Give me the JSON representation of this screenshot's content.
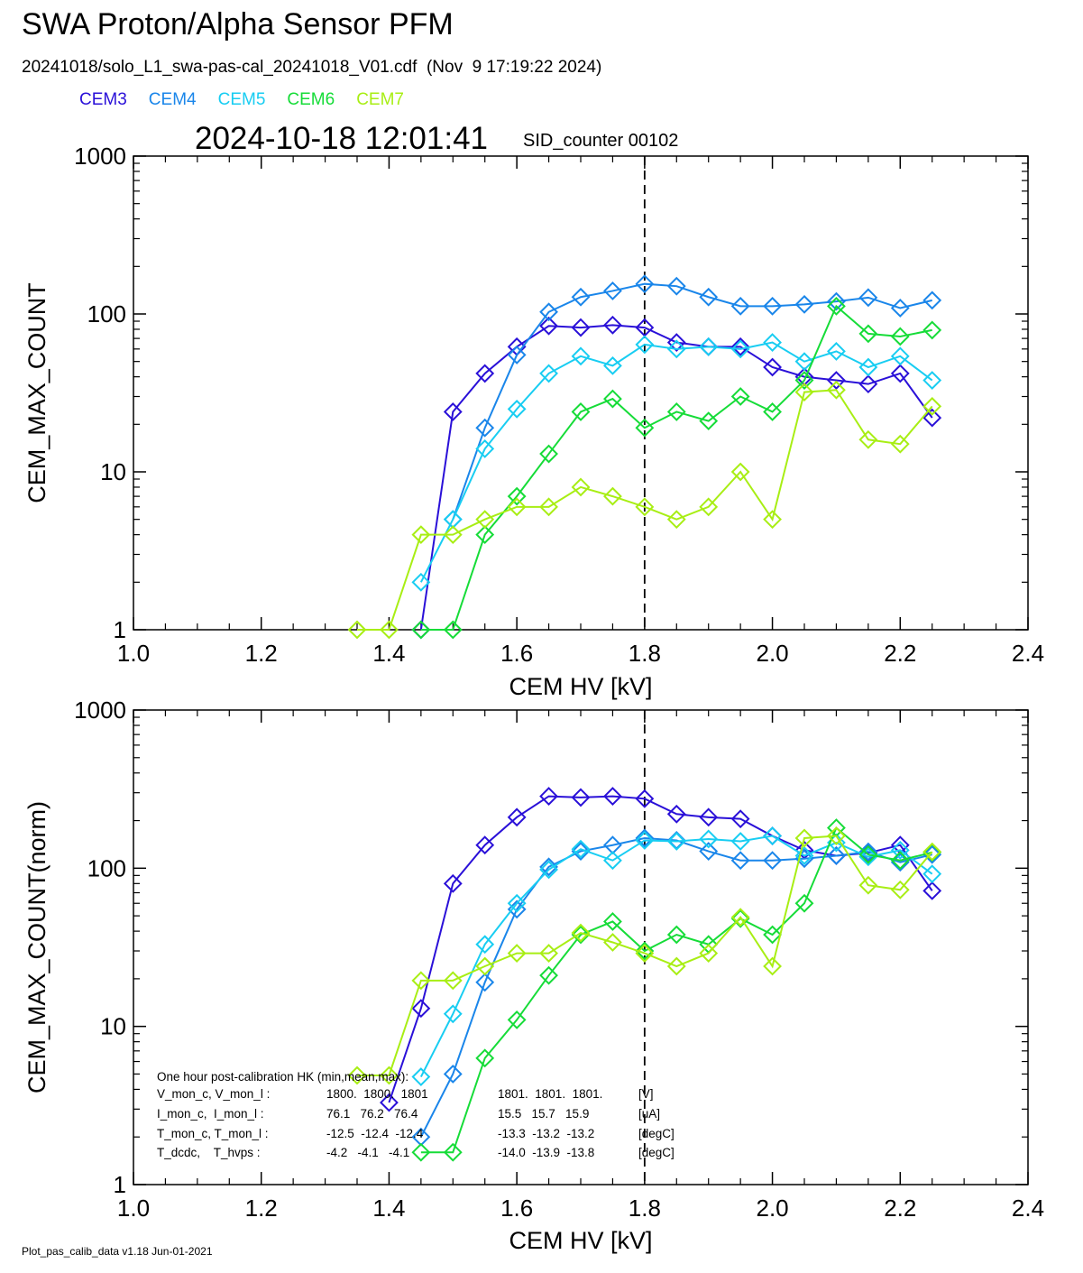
{
  "header": {
    "title": "SWA Proton/Alpha Sensor PFM",
    "file_line": "20241018/solo_L1_swa-pas-cal_20241018_V01.cdf  (Nov  9 17:19:22 2024)",
    "timestamp": "2024-10-18 12:01:41",
    "sid_counter": "SID_counter 00102"
  },
  "legend": [
    {
      "name": "CEM3",
      "color": "#2a10d8"
    },
    {
      "name": "CEM4",
      "color": "#1a86ea"
    },
    {
      "name": "CEM5",
      "color": "#18cdf2"
    },
    {
      "name": "CEM6",
      "color": "#16dc38"
    },
    {
      "name": "CEM7",
      "color": "#a8ee14"
    }
  ],
  "footer": "Plot_pas_calib_data v1.18 Jun-01-2021",
  "hk_block": {
    "title": "One hour post-calibration HK (min,mean,max):",
    "rows": [
      {
        "label": "V_mon_c, V_mon_l :",
        "c": "1800.  1800.  1801",
        "l": "1801.  1801.  1801.",
        "unit": "[V]"
      },
      {
        "label": "I_mon_c,  I_mon_l :",
        "c": "76.1   76.2   76.4",
        "l": "15.5   15.7   15.9",
        "unit": "[uA]"
      },
      {
        "label": "T_mon_c, T_mon_l :",
        "c": "-12.5  -12.4  -12.4",
        "l": "-13.3  -13.2  -13.2",
        "unit": "[degC]"
      },
      {
        "label": "T_dcdc,    T_hvps :",
        "c": "-4.2   -4.1   -4.1",
        "l": "-14.0  -13.9  -13.8",
        "unit": "[degC]"
      }
    ]
  },
  "chart_data": [
    {
      "type": "line",
      "xlabel": "CEM HV [kV]",
      "ylabel": "CEM_MAX_COUNT",
      "xlim": [
        1.0,
        2.4
      ],
      "ylim": [
        1,
        1000
      ],
      "yscale": "log",
      "xticks": [
        "1.0",
        "1.2",
        "1.4",
        "1.6",
        "1.8",
        "2.0",
        "2.2",
        "2.4"
      ],
      "yticks": [
        "1",
        "10",
        "100",
        "1000"
      ],
      "vline_x": 1.8,
      "series": [
        {
          "name": "CEM3",
          "x": [
            1.45,
            1.5,
            1.55,
            1.6,
            1.65,
            1.7,
            1.75,
            1.8,
            1.85,
            1.9,
            1.95,
            2.0,
            2.05,
            2.1,
            2.15,
            2.2,
            2.25
          ],
          "values": [
            1,
            24,
            42,
            62,
            84,
            82,
            85,
            82,
            66,
            62,
            62,
            46,
            40,
            38,
            36,
            42,
            22
          ]
        },
        {
          "name": "CEM4",
          "x": [
            1.5,
            1.55,
            1.6,
            1.65,
            1.7,
            1.75,
            1.8,
            1.85,
            1.9,
            1.95,
            2.0,
            2.05,
            2.1,
            2.15,
            2.2,
            2.25
          ],
          "values": [
            5,
            19,
            55,
            103,
            128,
            140,
            155,
            150,
            128,
            112,
            112,
            115,
            120,
            127,
            109,
            122
          ]
        },
        {
          "name": "CEM5",
          "x": [
            1.45,
            1.5,
            1.55,
            1.6,
            1.65,
            1.7,
            1.75,
            1.8,
            1.85,
            1.9,
            1.95,
            2.0,
            2.05,
            2.1,
            2.15,
            2.2,
            2.25
          ],
          "values": [
            2,
            5,
            14,
            25,
            42,
            54,
            47,
            64,
            60,
            62,
            60,
            66,
            50,
            58,
            46,
            54,
            38
          ]
        },
        {
          "name": "CEM6",
          "x": [
            1.45,
            1.5,
            1.55,
            1.6,
            1.65,
            1.7,
            1.75,
            1.8,
            1.85,
            1.9,
            1.95,
            2.0,
            2.05,
            2.1,
            2.15,
            2.2,
            2.25
          ],
          "values": [
            1,
            1,
            4,
            7,
            13,
            24,
            29,
            19,
            24,
            21,
            30,
            24,
            38,
            112,
            75,
            72,
            79
          ]
        },
        {
          "name": "CEM7",
          "x": [
            1.35,
            1.4,
            1.45,
            1.5,
            1.55,
            1.6,
            1.65,
            1.7,
            1.75,
            1.8,
            1.85,
            1.9,
            1.95,
            2.0,
            2.05,
            2.1,
            2.15,
            2.2,
            2.25
          ],
          "values": [
            1,
            1,
            4,
            4,
            5,
            6,
            6,
            8,
            7,
            6,
            5,
            6,
            10,
            5,
            32,
            33,
            16,
            15,
            26
          ]
        }
      ]
    },
    {
      "type": "line",
      "xlabel": "CEM HV [kV]",
      "ylabel": "CEM_MAX_COUNT(norm)",
      "xlim": [
        1.0,
        2.4
      ],
      "ylim": [
        1,
        1000
      ],
      "yscale": "log",
      "xticks": [
        "1.0",
        "1.2",
        "1.4",
        "1.6",
        "1.8",
        "2.0",
        "2.2",
        "2.4"
      ],
      "yticks": [
        "1",
        "10",
        "100",
        "1000"
      ],
      "vline_x": 1.8,
      "series": [
        {
          "name": "CEM3",
          "x": [
            1.4,
            1.45,
            1.5,
            1.55,
            1.6,
            1.65,
            1.7,
            1.75,
            1.8,
            1.85,
            1.9,
            1.95,
            2.0,
            2.05,
            2.1,
            2.15,
            2.2,
            2.25
          ],
          "values": [
            3.3,
            13,
            80,
            140,
            210,
            285,
            280,
            285,
            275,
            220,
            210,
            205,
            160,
            130,
            120,
            125,
            140,
            72
          ]
        },
        {
          "name": "CEM4",
          "x": [
            1.45,
            1.5,
            1.55,
            1.6,
            1.65,
            1.7,
            1.75,
            1.8,
            1.85,
            1.9,
            1.95,
            2.0,
            2.05,
            2.1,
            2.15,
            2.2,
            2.25
          ],
          "values": [
            2,
            5,
            19,
            55,
            102,
            128,
            140,
            155,
            150,
            128,
            112,
            112,
            115,
            120,
            127,
            109,
            122
          ]
        },
        {
          "name": "CEM5",
          "x": [
            1.45,
            1.5,
            1.55,
            1.6,
            1.65,
            1.7,
            1.75,
            1.8,
            1.85,
            1.9,
            1.95,
            2.0,
            2.05,
            2.1,
            2.15,
            2.2,
            2.25
          ],
          "values": [
            4.8,
            12,
            33,
            60,
            98,
            132,
            112,
            150,
            148,
            153,
            148,
            160,
            120,
            145,
            118,
            130,
            92
          ]
        },
        {
          "name": "CEM6",
          "x": [
            1.45,
            1.5,
            1.55,
            1.6,
            1.65,
            1.7,
            1.75,
            1.8,
            1.85,
            1.9,
            1.95,
            2.0,
            2.05,
            2.1,
            2.15,
            2.2,
            2.25
          ],
          "values": [
            1.6,
            1.6,
            6.3,
            11,
            21,
            38,
            46,
            30,
            38,
            33,
            48,
            38,
            60,
            180,
            122,
            112,
            126
          ]
        },
        {
          "name": "CEM7",
          "x": [
            1.35,
            1.4,
            1.45,
            1.5,
            1.55,
            1.6,
            1.65,
            1.7,
            1.75,
            1.8,
            1.85,
            1.9,
            1.95,
            2.0,
            2.05,
            2.1,
            2.15,
            2.2,
            2.25
          ],
          "values": [
            4.9,
            4.9,
            19.5,
            19.5,
            24,
            29,
            29,
            39,
            34,
            29,
            24,
            29,
            49,
            24,
            155,
            160,
            78,
            73,
            127
          ]
        }
      ]
    }
  ]
}
